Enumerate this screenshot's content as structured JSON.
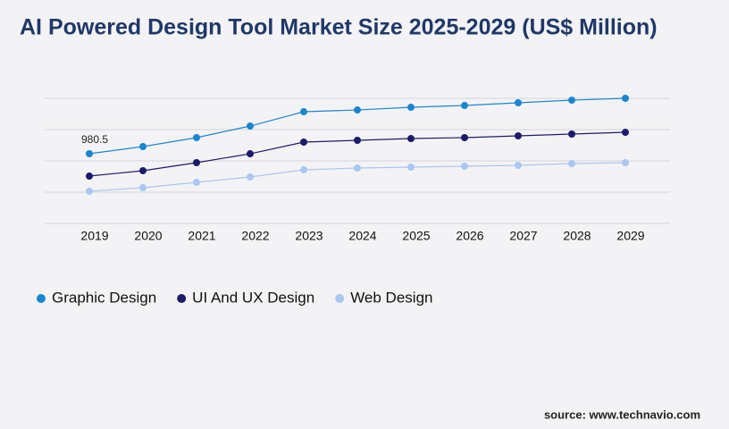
{
  "chart_data": {
    "type": "line",
    "title": "AI Powered Design Tool Market Size 2025-2029 (US$ Million)",
    "categories": [
      "2019",
      "2020",
      "2021",
      "2022",
      "2023",
      "2024",
      "2025",
      "2026",
      "2027",
      "2028",
      "2029"
    ],
    "ylim": [
      0,
      1760
    ],
    "series": [
      {
        "name": "Graphic Design",
        "color": "#1a86d0",
        "values": [
          980.5,
          1081,
          1207,
          1370,
          1571,
          1596,
          1634,
          1659,
          1697,
          1734,
          1760
        ],
        "value_labels": [
          "980.5",
          null,
          null,
          null,
          null,
          null,
          null,
          null,
          null,
          null,
          null
        ]
      },
      {
        "name": "UI And UX Design",
        "color": "#1c1a6b",
        "values": [
          666,
          742,
          855,
          980,
          1144,
          1169,
          1194,
          1207,
          1232,
          1257,
          1282
        ]
      },
      {
        "name": "Web Design",
        "color": "#a9c7f2",
        "values": [
          453,
          503,
          578,
          654,
          754,
          779,
          792,
          805,
          817,
          842,
          855
        ]
      }
    ],
    "source": "source: www.technavio.com"
  }
}
